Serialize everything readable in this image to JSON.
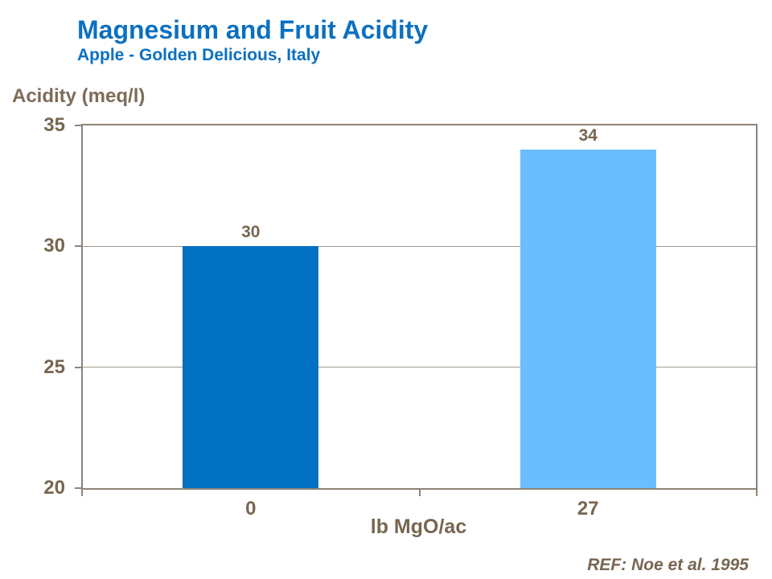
{
  "slide": {
    "title": "Magnesium and Fruit Acidity",
    "subtitle": "Apple - Golden Delicious, Italy",
    "reference": "REF: Noe et al. 1995"
  },
  "chart_data": {
    "type": "bar",
    "title": "Magnesium and Fruit Acidity",
    "subtitle": "Apple - Golden Delicious, Italy",
    "categories": [
      "0",
      "27"
    ],
    "values": [
      30,
      34
    ],
    "bar_value_labels": [
      "30",
      "34"
    ],
    "xlabel": "lb MgO/ac",
    "ylabel": "Acidity (meq/l)",
    "ylim": [
      20,
      35
    ],
    "yticks": [
      20,
      25,
      30,
      35
    ],
    "grid": "horizontal",
    "legend": "none",
    "annotation": "REF: Noe et al. 1995",
    "bar_colors": [
      "#0070C0",
      "#6ABEFF"
    ]
  },
  "colors": {
    "title_blue": "#0C70C0",
    "bar_dark_blue": "#0070C0",
    "bar_light_blue": "#6ABEFF",
    "axis_line": "#8E8478",
    "gridline": "#A39A8D",
    "tick_text_brown": "#776650",
    "axis_title_brown": "#7D6C58",
    "background": "#FFFFFF"
  }
}
